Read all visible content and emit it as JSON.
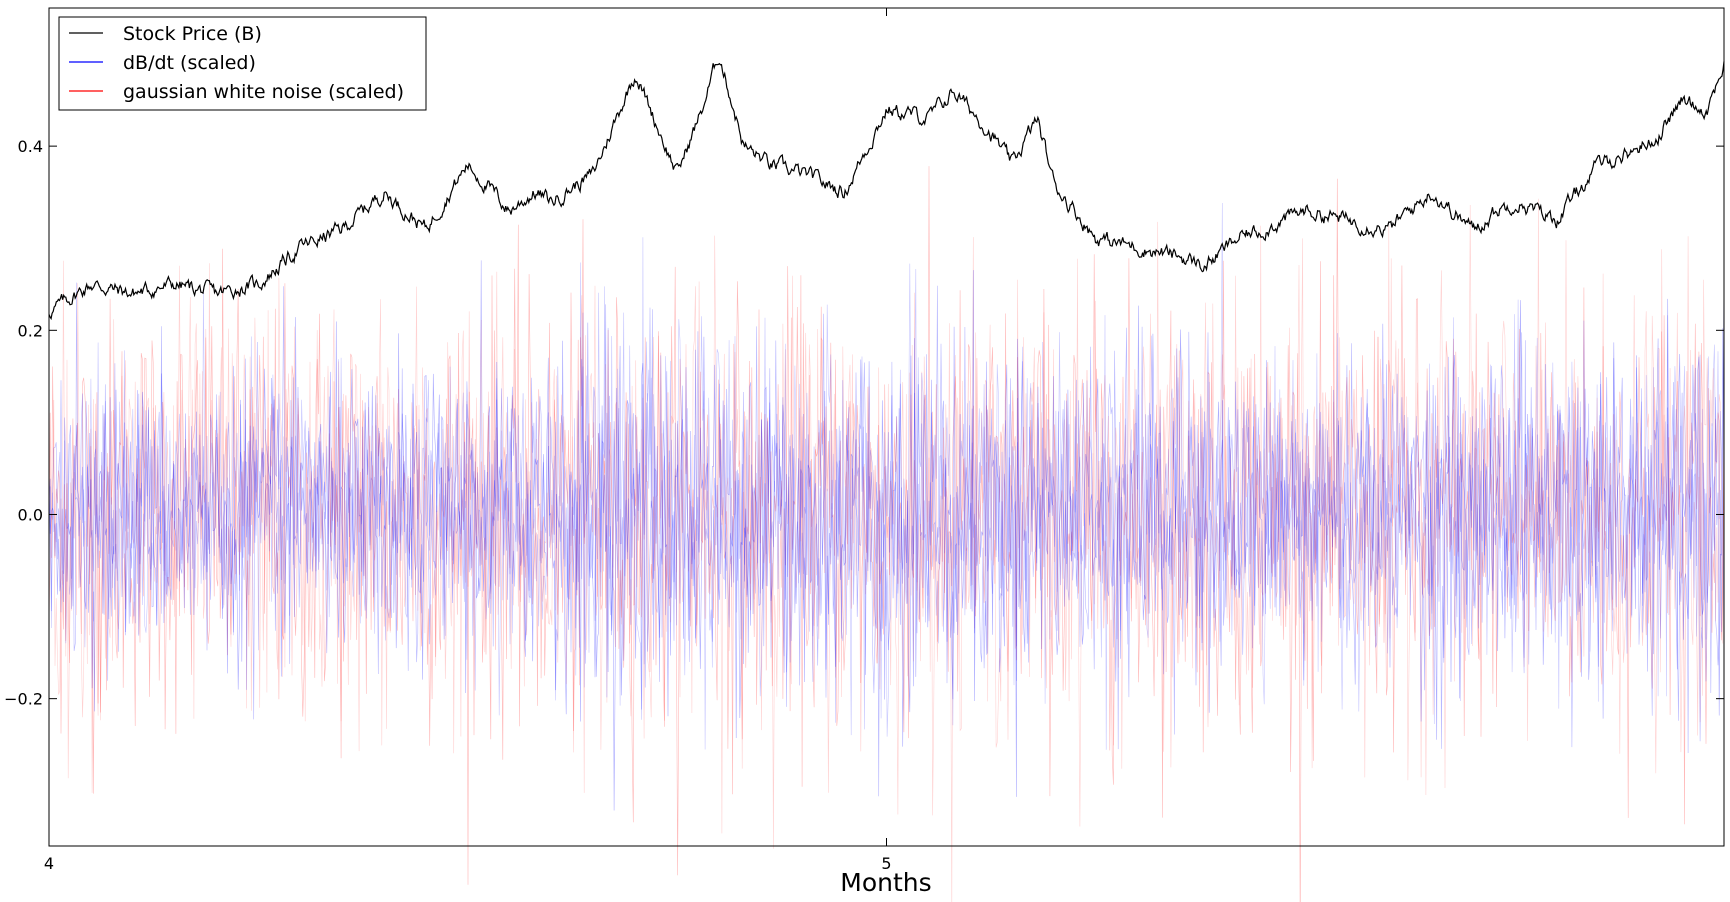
{
  "chart_data": {
    "type": "line",
    "title": "",
    "xlabel": "Months",
    "ylabel": "",
    "xlim": [
      4,
      6
    ],
    "ylim": [
      -0.36,
      0.55
    ],
    "x_ticks": [
      4,
      5
    ],
    "x_tick_labels": [
      "4",
      "5"
    ],
    "y_ticks": [
      0.4,
      0.2,
      0.0,
      -0.2
    ],
    "y_tick_labels": [
      "0.4",
      "0.2",
      "0.0",
      "−0.2"
    ],
    "grid": false,
    "legend_position": "top-left",
    "series": [
      {
        "name": "Stock Price (B)",
        "color": "#000000",
        "x": [
          4.0,
          4.05,
          4.1,
          4.15,
          4.2,
          4.25,
          4.3,
          4.35,
          4.4,
          4.45,
          4.5,
          4.55,
          4.58,
          4.6,
          4.65,
          4.7,
          4.75,
          4.78,
          4.8,
          4.83,
          4.86,
          4.9,
          4.95,
          5.0,
          5.05,
          5.08,
          5.12,
          5.15,
          5.18,
          5.2,
          5.25,
          5.3,
          5.35,
          5.38,
          5.42,
          5.45,
          5.5,
          5.55,
          5.6,
          5.65,
          5.7,
          5.73,
          5.75,
          5.8,
          5.85,
          5.88,
          5.92,
          5.95,
          5.98,
          6.0
        ],
        "values": [
          0.22,
          0.25,
          0.24,
          0.25,
          0.24,
          0.25,
          0.29,
          0.31,
          0.35,
          0.31,
          0.38,
          0.33,
          0.35,
          0.34,
          0.37,
          0.48,
          0.37,
          0.44,
          0.5,
          0.4,
          0.38,
          0.37,
          0.35,
          0.44,
          0.43,
          0.46,
          0.42,
          0.38,
          0.43,
          0.36,
          0.3,
          0.29,
          0.28,
          0.27,
          0.3,
          0.31,
          0.33,
          0.32,
          0.31,
          0.35,
          0.31,
          0.33,
          0.34,
          0.32,
          0.38,
          0.39,
          0.41,
          0.45,
          0.44,
          0.49
        ]
      },
      {
        "name": "dB/dt (scaled)",
        "color": "#0000ff",
        "mean": 0.0,
        "envelope_x": [
          4.0,
          4.25,
          4.5,
          4.68,
          4.75,
          5.0,
          5.25,
          5.5,
          5.75,
          6.0
        ],
        "envelope_upper": [
          0.14,
          0.15,
          0.15,
          0.2,
          0.18,
          0.2,
          0.17,
          0.15,
          0.17,
          0.2
        ],
        "envelope_lower": [
          -0.14,
          -0.15,
          -0.15,
          -0.19,
          -0.18,
          -0.2,
          -0.17,
          -0.15,
          -0.17,
          -0.19
        ]
      },
      {
        "name": "gaussian white noise (scaled)",
        "color": "#ff0000",
        "mean": 0.0,
        "envelope_x": [
          4.0,
          4.25,
          4.5,
          4.75,
          5.0,
          5.25,
          5.5,
          5.75,
          6.0
        ],
        "envelope_upper": [
          0.21,
          0.21,
          0.21,
          0.21,
          0.21,
          0.21,
          0.21,
          0.21,
          0.21
        ],
        "envelope_lower": [
          -0.21,
          -0.21,
          -0.21,
          -0.21,
          -0.21,
          -0.21,
          -0.21,
          -0.21,
          -0.21
        ]
      }
    ]
  }
}
